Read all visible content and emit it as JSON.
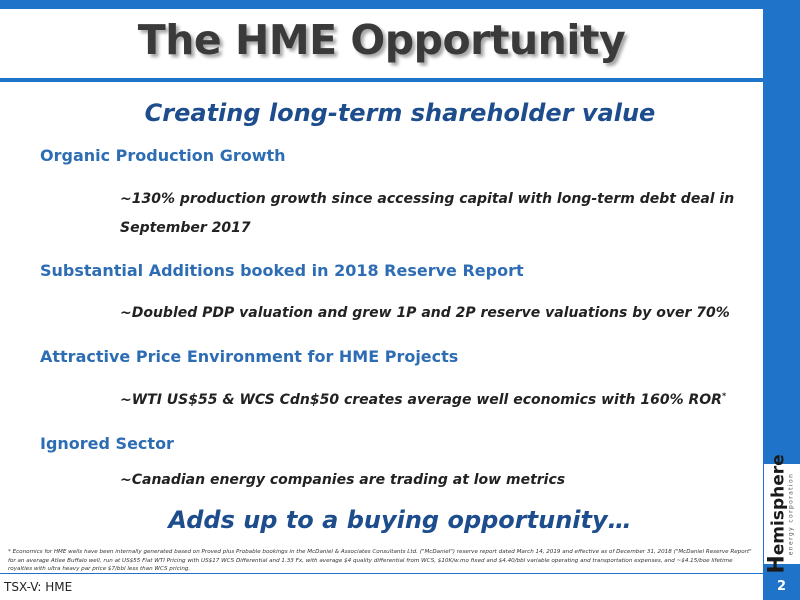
{
  "slide": {
    "title": "The HME Opportunity",
    "subtitle": "Creating long-term shareholder value",
    "sections": [
      {
        "heading": "Organic Production Growth",
        "bullet": "~130% production growth since accessing capital with long-term debt deal in September 2017"
      },
      {
        "heading": "Substantial Additions booked in 2018 Reserve Report",
        "bullet": "~Doubled PDP valuation and grew 1P and 2P reserve valuations by over 70%"
      },
      {
        "heading": "Attractive Price Environment for HME Projects",
        "bullet": "~WTI US$55 & WCS Cdn$50 creates average well economics with 160% ROR",
        "bullet_marker": "*"
      },
      {
        "heading": "Ignored Sector",
        "bullet": "~Canadian energy companies are trading at low metrics"
      }
    ],
    "closing": "Adds up to a buying opportunity…",
    "footnote": "* Economics for HME wells have been internally generated based on Proved plus Probable bookings in the McDaniel & Associates Consultants Ltd. (\"McDaniel\") reserve report dated March 14, 2019 and effective as of December 31, 2018 (\"McDaniel Reserve Report\" for an average Atlee Buffalo well, run at US$55 Flat WTI Pricing with US$17 WCS Differential and 1.33 Fx, with average $4 quality differential from WCS, $10K/w.mo fixed and $4.40/bbl variable operating and transportation expenses, and ~$4.15/boe lifetime royalties with ultra heavy par price $7/bbl less than WCS pricing.",
    "ticker": "TSX-V: HME",
    "page_number": "2"
  },
  "logo": {
    "initial": "H",
    "name_rest": "emisphere",
    "tagline": "energy corporation"
  },
  "colors": {
    "accent_blue": "#1f73c9",
    "heading_blue": "#2e6db4",
    "dark_blue": "#1d4d8c",
    "title_gray": "#3a3a3a"
  }
}
